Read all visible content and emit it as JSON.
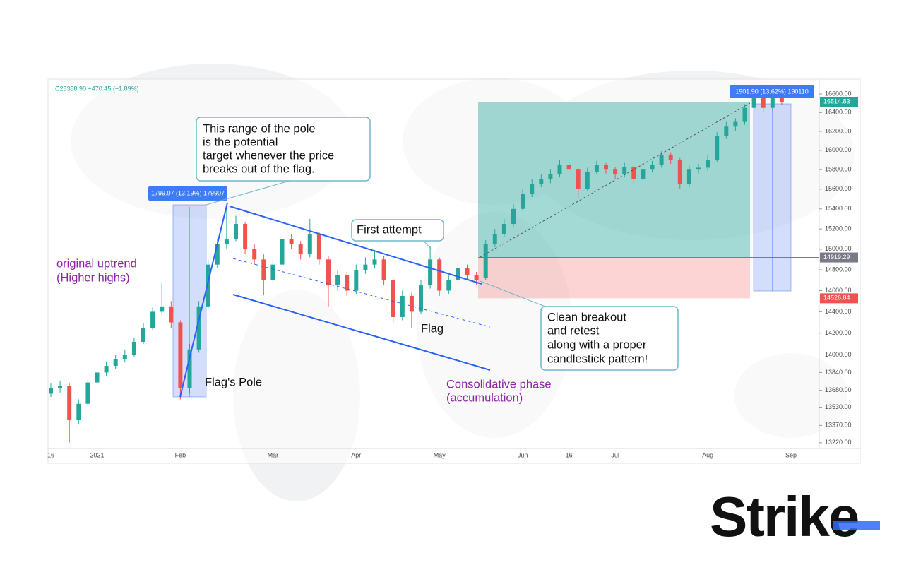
{
  "chart_data": {
    "type": "candlestick",
    "ticker": "C25388.90 +470.45 (+1.89%)",
    "log_scale": true,
    "grid": false,
    "up_color": "#26a69a",
    "down_color": "#ef5350",
    "categories": [
      "16",
      null,
      null,
      null,
      null,
      "2021",
      null,
      null,
      null,
      null,
      null,
      null,
      null,
      null,
      "Feb",
      null,
      null,
      null,
      null,
      null,
      null,
      null,
      null,
      null,
      "Mar",
      null,
      null,
      null,
      null,
      null,
      null,
      null,
      null,
      "Apr",
      null,
      null,
      null,
      null,
      null,
      null,
      null,
      null,
      "May",
      null,
      null,
      null,
      null,
      null,
      null,
      null,
      null,
      "Jun",
      null,
      null,
      null,
      null,
      "16",
      null,
      null,
      null,
      null,
      "Jul",
      null,
      null,
      null,
      null,
      null,
      null,
      null,
      null,
      null,
      "Aug",
      null,
      null,
      null,
      null,
      null,
      null,
      null,
      null,
      "Sep"
    ],
    "open": [
      13650,
      13700,
      13720,
      13420,
      13560,
      13750,
      13840,
      13900,
      13960,
      14000,
      14120,
      14250,
      14400,
      14450,
      14300,
      13700,
      14050,
      14450,
      14850,
      15050,
      15100,
      15250,
      15000,
      14900,
      14700,
      14850,
      15100,
      15050,
      14950,
      15150,
      14900,
      14650,
      14750,
      14600,
      14800,
      14850,
      14900,
      14700,
      14350,
      14550,
      14400,
      14650,
      14900,
      14600,
      14700,
      14820,
      14750,
      14720,
      15050,
      15150,
      15250,
      15400,
      15550,
      15650,
      15700,
      15750,
      15850,
      15800,
      15600,
      15780,
      15850,
      15800,
      15750,
      15830,
      15700,
      15800,
      15850,
      15950,
      15900,
      15650,
      15800,
      15820,
      15900,
      16150,
      16250,
      16300,
      16450,
      16600,
      16450,
      16600,
      null
    ],
    "high": [
      13740,
      13760,
      13740,
      13600,
      13780,
      13880,
      13940,
      14000,
      14050,
      14160,
      14290,
      14440,
      14680,
      14500,
      14320,
      14100,
      14500,
      14900,
      15100,
      15400,
      15330,
      15270,
      15050,
      14950,
      14900,
      15250,
      15150,
      15080,
      15300,
      15170,
      14930,
      14800,
      14780,
      14850,
      14920,
      14990,
      14930,
      14720,
      14600,
      14580,
      14700,
      15030,
      14920,
      14750,
      14870,
      14850,
      14780,
      15090,
      15200,
      15300,
      15450,
      15600,
      15700,
      15750,
      15800,
      15900,
      15880,
      15820,
      15820,
      15890,
      15870,
      15830,
      15870,
      15850,
      15840,
      15890,
      15990,
      15980,
      15920,
      15840,
      15860,
      15950,
      16190,
      16300,
      16340,
      16490,
      16680,
      16620,
      16650,
      16640,
      null
    ],
    "low": [
      13620,
      13660,
      13220,
      13380,
      13540,
      13720,
      13810,
      13870,
      13930,
      13980,
      14100,
      14230,
      14380,
      14250,
      13600,
      13650,
      14020,
      14420,
      14820,
      15000,
      15080,
      14950,
      14850,
      14560,
      14680,
      14820,
      15000,
      14900,
      14920,
      14850,
      14450,
      14600,
      14550,
      14570,
      14760,
      14820,
      14650,
      14300,
      14320,
      14250,
      14380,
      14620,
      14550,
      14570,
      14680,
      14700,
      14650,
      14700,
      15020,
      15120,
      15220,
      15380,
      15520,
      15620,
      15660,
      15720,
      15760,
      15500,
      15580,
      15750,
      15760,
      15700,
      15720,
      15660,
      15680,
      15770,
      15820,
      15860,
      15600,
      15620,
      15760,
      15790,
      15880,
      16120,
      16200,
      16270,
      16420,
      16400,
      16420,
      16480,
      null
    ],
    "close": [
      13700,
      13720,
      13420,
      13560,
      13750,
      13840,
      13900,
      13960,
      14000,
      14120,
      14250,
      14400,
      14450,
      14300,
      13700,
      14050,
      14450,
      14850,
      15050,
      15100,
      15250,
      15000,
      14900,
      14700,
      14850,
      15100,
      15050,
      14950,
      15150,
      14900,
      14650,
      14750,
      14600,
      14800,
      14850,
      14900,
      14700,
      14350,
      14550,
      14400,
      14650,
      14900,
      14600,
      14700,
      14820,
      14750,
      14700,
      15050,
      15150,
      15250,
      15400,
      15550,
      15650,
      15700,
      15750,
      15850,
      15800,
      15600,
      15780,
      15850,
      15800,
      15750,
      15830,
      15700,
      15800,
      15850,
      15950,
      15900,
      15650,
      15800,
      15820,
      15900,
      16150,
      16250,
      16300,
      16450,
      16600,
      16450,
      16600,
      16515,
      null
    ],
    "ylim": [
      13140,
      16700
    ],
    "yticks": [
      {
        "value": 16600,
        "label": "16600.00"
      },
      {
        "value": 16400,
        "label": "16400.00"
      },
      {
        "value": 16200,
        "label": "16200.00"
      },
      {
        "value": 16000,
        "label": "16000.00"
      },
      {
        "value": 15800,
        "label": "15800.00"
      },
      {
        "value": 15600,
        "label": "15600.00"
      },
      {
        "value": 15400,
        "label": "15400.00"
      },
      {
        "value": 15200,
        "label": "15200.00"
      },
      {
        "value": 15000,
        "label": "15000.00"
      },
      {
        "value": 14800,
        "label": "14800.00"
      },
      {
        "value": 14600,
        "label": "14600.00"
      },
      {
        "value": 14400,
        "label": "14400.00"
      },
      {
        "value": 14200,
        "label": "14200.00"
      },
      {
        "value": 14000,
        "label": "14000.00"
      },
      {
        "value": 13840,
        "label": "13840.00"
      },
      {
        "value": 13680,
        "label": "13680.00"
      },
      {
        "value": 13530,
        "label": "13530.00"
      },
      {
        "value": 13370,
        "label": "13370.00"
      },
      {
        "value": 13220,
        "label": "13220.00"
      }
    ],
    "price_tags": [
      {
        "value": 16514.83,
        "color": "#26a69a"
      },
      {
        "value": 14919.29,
        "color": "#787b86"
      },
      {
        "value": 14526.84,
        "color": "#ef5350"
      }
    ],
    "measure_labels": [
      "1799.07 (13.19%) 179907",
      "1901.90 (13.62%) 190110"
    ],
    "annotations": {
      "pole_target": [
        "This range of the pole",
        "is the potential",
        "target whenever the price",
        "breaks out of the flag."
      ],
      "uptrend": [
        "original uptrend",
        "(Higher highs)"
      ],
      "pole": "Flag's Pole",
      "first_attempt": "First attempt",
      "flag": "Flag",
      "consolidation": [
        "Consolidative phase",
        "(accumulation)"
      ],
      "breakout": [
        "Clean breakout",
        "and retest",
        "along with a proper",
        "candlestick pattern!"
      ]
    }
  },
  "logo": "Strike"
}
